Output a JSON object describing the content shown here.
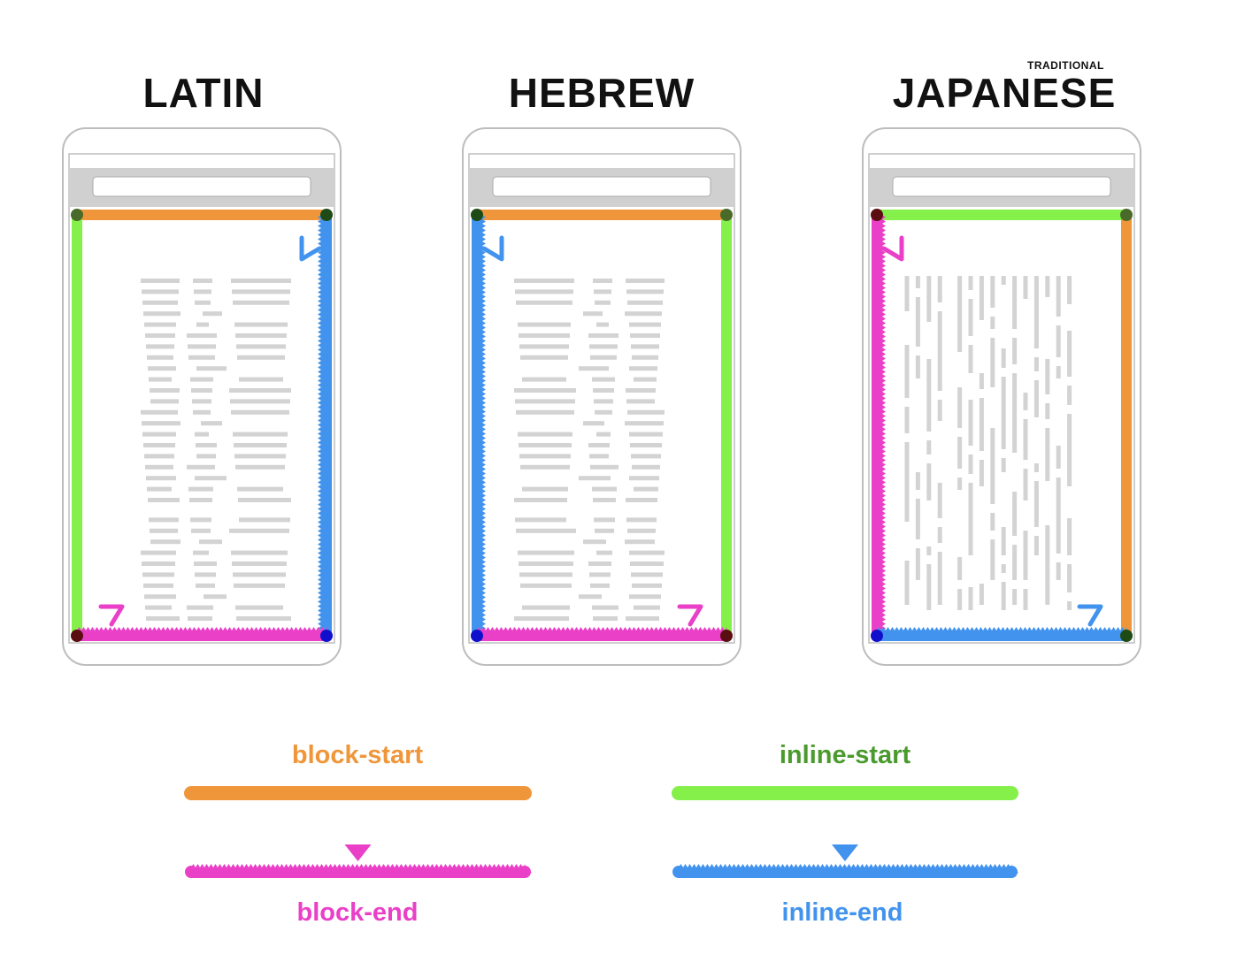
{
  "panels": [
    {
      "id": "latin",
      "title": "LATIN",
      "superscript": ""
    },
    {
      "id": "hebrew",
      "title": "HEBREW",
      "superscript": ""
    },
    {
      "id": "japanese",
      "title": "JAPANESE",
      "superscript": "TRADITIONAL"
    }
  ],
  "legend": {
    "block_start": "block-start",
    "block_end": "block-end",
    "inline_start": "inline-start",
    "inline_end": "inline-end"
  },
  "colors": {
    "block_start": "#f0963a",
    "block_end": "#ea3fc7",
    "inline_start": "#86f04a",
    "inline_end": "#4293ee",
    "inline_start_label": "#4a9a2e",
    "text_line": "#d3d3d3",
    "phone_border": "#bdbdbd",
    "title_text": "#111111"
  }
}
